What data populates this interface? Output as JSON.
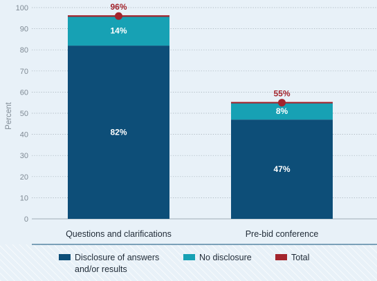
{
  "chart_data": {
    "type": "bar",
    "stacked": true,
    "categories": [
      "Questions and clarifications",
      "Pre-bid conference"
    ],
    "series": [
      {
        "name": "Disclosure of answers and/or results",
        "legend_lines": [
          "Disclosure of answers",
          "and/or results"
        ],
        "values": [
          82,
          47
        ],
        "labels": [
          "82%",
          "47%"
        ],
        "color": "#0d4e78"
      },
      {
        "name": "No disclosure",
        "values": [
          14,
          8
        ],
        "labels": [
          "14%",
          "8%"
        ],
        "color": "#17a1b4"
      },
      {
        "name": "Total",
        "values": [
          96,
          55
        ],
        "labels": [
          "96%",
          "55%"
        ],
        "color": "#a3242c"
      }
    ],
    "ylabel": "Percent",
    "ylim": [
      0,
      100
    ],
    "yticks": [
      "0",
      "10",
      "20",
      "30",
      "40",
      "50",
      "60",
      "70",
      "80",
      "90",
      "100"
    ],
    "grid": true,
    "legend_position": "bottom"
  }
}
